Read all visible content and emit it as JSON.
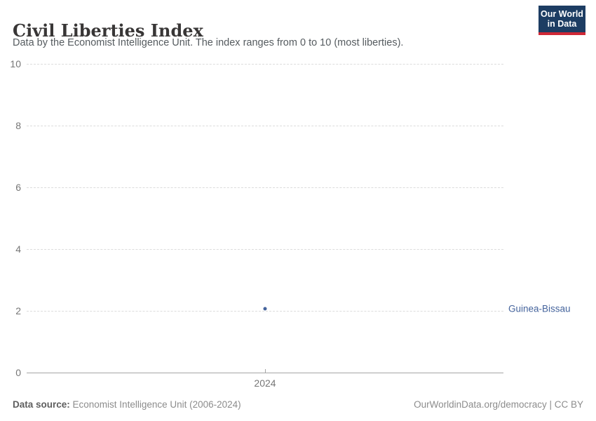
{
  "header": {
    "title": "Civil Liberties Index",
    "subtitle": "Data by the Economist Intelligence Unit. The index ranges from 0 to 10 (most liberties).",
    "logo": {
      "line1": "Our World",
      "line2": "in Data"
    }
  },
  "chart_data": {
    "type": "scatter",
    "title": "Civil Liberties Index",
    "series": [
      {
        "name": "Guinea-Bissau",
        "x": [
          2024
        ],
        "values": [
          2.06
        ],
        "color": "#44639c"
      }
    ],
    "xlabel": "",
    "ylabel": "",
    "ylim": [
      0,
      10
    ],
    "yticks": [
      0,
      2,
      4,
      6,
      8,
      10
    ],
    "xticks": [
      "2024"
    ],
    "grid": "horizontal-dashed",
    "legend": "entity-label-right-of-plot"
  },
  "footer": {
    "datasource_label": "Data source:",
    "datasource_value": " Economist Intelligence Unit (2006-2024)",
    "credit": "OurWorldinData.org/democracy | CC BY"
  },
  "colors": {
    "accent_blue": "#44639c",
    "logo_background": "#1d3d63",
    "logo_stripe": "#cf2836",
    "gridline": "#dcdcdc",
    "axis_line": "#a5a5a5",
    "tick_text": "#767676"
  }
}
